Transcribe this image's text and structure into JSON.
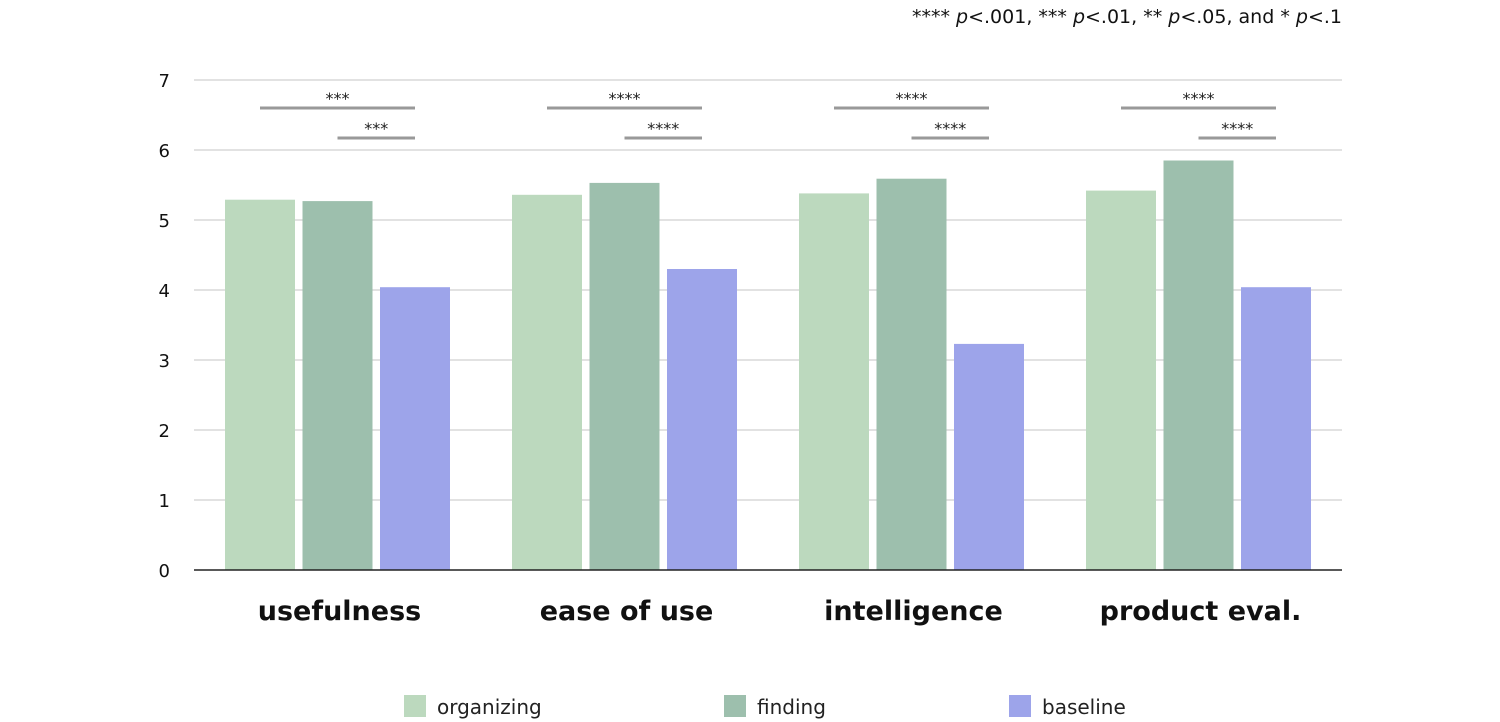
{
  "chart_data": {
    "type": "bar",
    "title": "",
    "xlabel": "",
    "ylabel": "",
    "ylim": [
      0,
      7
    ],
    "yticks": [
      0,
      1,
      2,
      3,
      4,
      5,
      6,
      7
    ],
    "grid": true,
    "legend_position": "bottom",
    "categories": [
      "usefulness",
      "ease of use",
      "intelligence",
      "product eval."
    ],
    "series": [
      {
        "name": "organizing",
        "color": "#bcd9be",
        "values": [
          5.29,
          5.36,
          5.38,
          5.42
        ]
      },
      {
        "name": "finding",
        "color": "#9dbfad",
        "values": [
          5.27,
          5.53,
          5.59,
          5.85
        ]
      },
      {
        "name": "baseline",
        "color": "#9da4ea",
        "values": [
          4.04,
          4.3,
          3.23,
          4.04
        ]
      }
    ],
    "significance": [
      {
        "category": "usefulness",
        "pairs": [
          {
            "from": "organizing",
            "to": "baseline",
            "label": "***"
          },
          {
            "from": "finding",
            "to": "baseline",
            "label": "***"
          }
        ]
      },
      {
        "category": "ease of use",
        "pairs": [
          {
            "from": "organizing",
            "to": "baseline",
            "label": "****"
          },
          {
            "from": "finding",
            "to": "baseline",
            "label": "****"
          }
        ]
      },
      {
        "category": "intelligence",
        "pairs": [
          {
            "from": "organizing",
            "to": "baseline",
            "label": "****"
          },
          {
            "from": "finding",
            "to": "baseline",
            "label": "****"
          }
        ]
      },
      {
        "category": "product eval.",
        "pairs": [
          {
            "from": "organizing",
            "to": "baseline",
            "label": "****"
          },
          {
            "from": "finding",
            "to": "baseline",
            "label": "****"
          }
        ]
      }
    ],
    "annotation": {
      "parts": [
        "**** ",
        "p",
        "<.001, *** ",
        "p",
        "<.01, ** ",
        "p",
        "<.05, and * ",
        "p",
        "<.1"
      ]
    }
  }
}
